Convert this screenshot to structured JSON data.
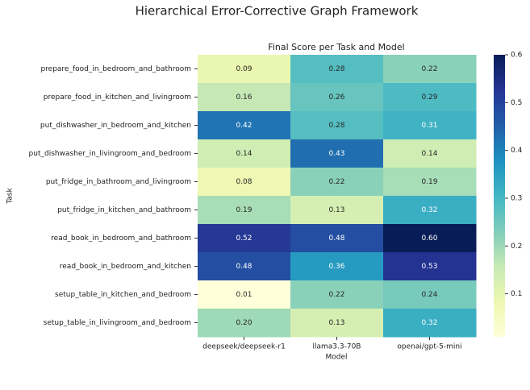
{
  "chart_data": {
    "type": "heatmap",
    "title": "Hierarchical Error-Corrective Graph Framework",
    "subtitle": "Final Score per Task and Model",
    "x_label": "Model",
    "y_label": "Task",
    "columns": [
      "deepseek/deepseek-r1",
      "llama3.3-70B",
      "openai/gpt-5-mini"
    ],
    "rows": [
      "prepare_food_in_bedroom_and_bathroom",
      "prepare_food_in_kitchen_and_livingroom",
      "put_dishwasher_in_bedroom_and_kitchen",
      "put_dishwasher_in_livingroom_and_bedroom",
      "put_fridge_in_bathroom_and_livingroom",
      "put_fridge_in_kitchen_and_bathroom",
      "read_book_in_bedroom_and_bathroom",
      "read_book_in_bedroom_and_kitchen",
      "setup_table_in_kitchen_and_bedroom",
      "setup_table_in_livingroom_and_bedroom"
    ],
    "values": [
      [
        0.09,
        0.28,
        0.22
      ],
      [
        0.16,
        0.26,
        0.29
      ],
      [
        0.42,
        0.28,
        0.31
      ],
      [
        0.14,
        0.43,
        0.14
      ],
      [
        0.08,
        0.22,
        0.19
      ],
      [
        0.19,
        0.13,
        0.32
      ],
      [
        0.52,
        0.48,
        0.6
      ],
      [
        0.48,
        0.36,
        0.53
      ],
      [
        0.01,
        0.22,
        0.24
      ],
      [
        0.2,
        0.13,
        0.32
      ]
    ],
    "value_labels": [
      [
        "0.09",
        "0.28",
        "0.22"
      ],
      [
        "0.16",
        "0.26",
        "0.29"
      ],
      [
        "0.42",
        "0.28",
        "0.31"
      ],
      [
        "0.14",
        "0.43",
        "0.14"
      ],
      [
        "0.08",
        "0.22",
        "0.19"
      ],
      [
        "0.19",
        "0.13",
        "0.32"
      ],
      [
        "0.52",
        "0.48",
        "0.60"
      ],
      [
        "0.48",
        "0.36",
        "0.53"
      ],
      [
        "0.01",
        "0.22",
        "0.24"
      ],
      [
        "0.20",
        "0.13",
        "0.32"
      ]
    ],
    "colormap": "YlGnBu",
    "colors": [
      "#ffffd9",
      "#edf8b1",
      "#c7e9b4",
      "#7fcdbb",
      "#41b6c4",
      "#1d91c0",
      "#225ea8",
      "#253494",
      "#081d58"
    ],
    "clim": [
      0.01,
      0.6
    ],
    "cticks": [
      0.1,
      0.2,
      0.3,
      0.4,
      0.5,
      0.6
    ]
  }
}
